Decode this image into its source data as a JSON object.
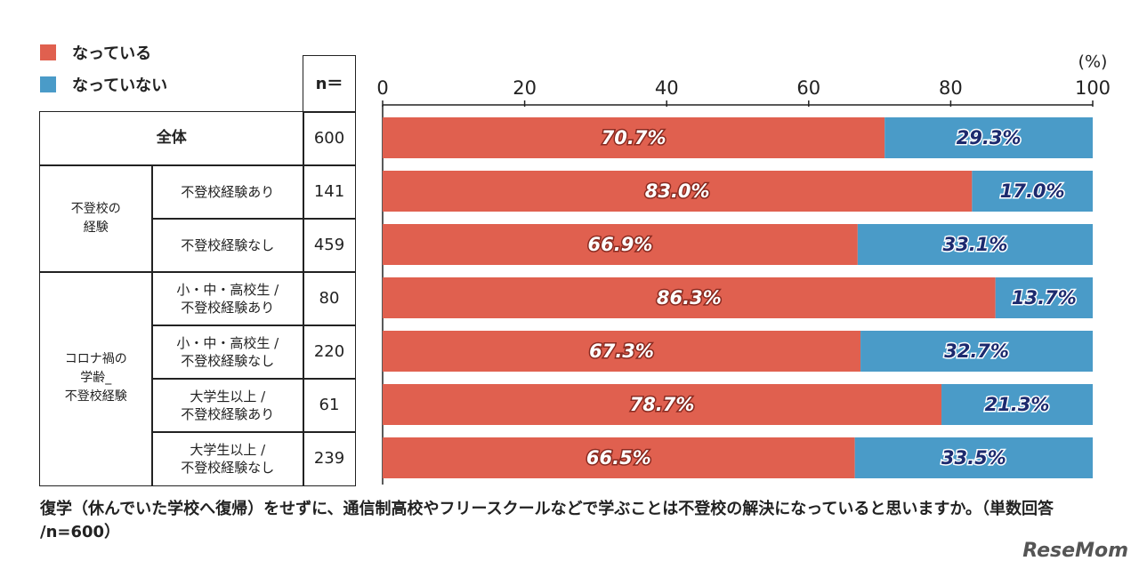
{
  "chart_data": {
    "type": "stacked-bar-h",
    "unit_label": "(%)",
    "n_header": "n＝",
    "groups": [
      {
        "label": "全体",
        "categories": [
          null
        ]
      },
      {
        "label": "不登校の\n経験",
        "categories": [
          "不登校経験あり",
          "不登校経験なし"
        ]
      },
      {
        "label": "コロナ禍の\n学齢_\n不登校経験",
        "categories": [
          "小・中・高校生 /\n不登校経験あり",
          "小・中・高校生 /\n不登校経験なし",
          "大学生以上 /\n不登校経験あり",
          "大学生以上 /\n不登校経験なし"
        ]
      }
    ],
    "n": [
      600,
      141,
      459,
      80,
      220,
      61,
      239
    ],
    "series": [
      {
        "name": "なっている",
        "color": "#e0604f",
        "values": [
          70.7,
          83.0,
          66.9,
          86.3,
          67.3,
          78.7,
          66.5
        ],
        "value_labels": [
          "70.7%",
          "83.0%",
          "66.9%",
          "86.3%",
          "67.3%",
          "78.7%",
          "66.5%"
        ]
      },
      {
        "name": "なっていない",
        "color": "#4a9bc8",
        "values": [
          29.3,
          17.0,
          33.1,
          13.7,
          32.7,
          21.3,
          33.5
        ],
        "value_labels": [
          "29.3%",
          "17.0%",
          "33.1%",
          "13.7%",
          "32.7%",
          "21.3%",
          "33.5%"
        ]
      }
    ],
    "xlim": [
      0,
      100
    ],
    "xticks": [
      0,
      20,
      40,
      60,
      80,
      100
    ],
    "caption": "復学（休んでいた学校へ復帰）をせずに、通信制高校やフリースクールなどで学ぶことは不登校の解決になっていると思いますか。（単数回答 /n=600）",
    "watermark": "ReseMom"
  }
}
